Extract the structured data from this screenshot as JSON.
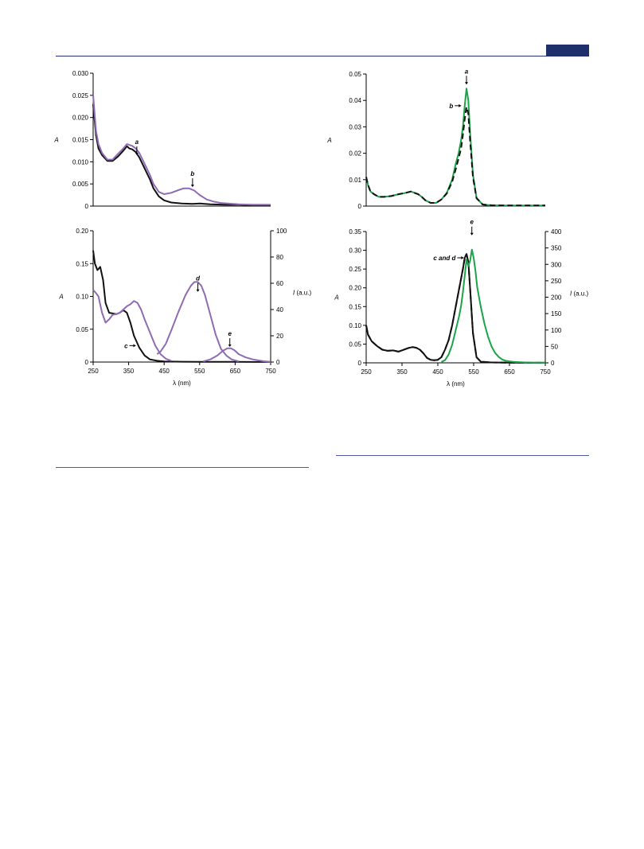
{
  "colors": {
    "purple": "#8e6bb3",
    "black": "#111111",
    "green": "#1aa44a",
    "header": "#1f2f6b"
  },
  "chart_data": [
    {
      "id": "A-top",
      "type": "line",
      "ylabel": "A",
      "xlim": [
        250,
        750
      ],
      "ylim": [
        0,
        0.03
      ],
      "yticks": [
        "0",
        "0.005",
        "0.010",
        "0.015",
        "0.020",
        "0.025",
        "0.030"
      ],
      "series": [
        {
          "color": "#111111",
          "style": "solid",
          "x": [
            250,
            258,
            265,
            275,
            290,
            305,
            320,
            335,
            345,
            352,
            360,
            370,
            380,
            395,
            410,
            420,
            435,
            450,
            470,
            500,
            530,
            550,
            580,
            620,
            660,
            700,
            750
          ],
          "y": [
            0.023,
            0.016,
            0.013,
            0.0115,
            0.0102,
            0.0102,
            0.0112,
            0.0125,
            0.0135,
            0.013,
            0.0128,
            0.0122,
            0.011,
            0.0085,
            0.006,
            0.004,
            0.0022,
            0.0013,
            0.0008,
            0.0006,
            0.0005,
            0.0006,
            0.0004,
            0.0003,
            0.0003,
            0.0002,
            0.0002
          ]
        },
        {
          "color": "#8e6bb3",
          "style": "solid",
          "x": [
            250,
            258,
            265,
            275,
            290,
            305,
            320,
            335,
            345,
            352,
            360,
            370,
            380,
            395,
            410,
            420,
            435,
            450,
            470,
            490,
            505,
            520,
            535,
            550,
            570,
            590,
            610,
            630,
            660,
            700,
            750
          ],
          "y": [
            0.025,
            0.017,
            0.014,
            0.012,
            0.0105,
            0.0105,
            0.0118,
            0.013,
            0.014,
            0.0138,
            0.0136,
            0.013,
            0.012,
            0.0095,
            0.007,
            0.005,
            0.0032,
            0.0027,
            0.003,
            0.0036,
            0.004,
            0.004,
            0.0035,
            0.0025,
            0.0015,
            0.001,
            0.0007,
            0.0006,
            0.0004,
            0.0003,
            0.0003
          ]
        }
      ],
      "annotations": [
        {
          "label": "a",
          "x": 373,
          "y": 0.0115
        },
        {
          "label": "b",
          "x": 530,
          "y": 0.0043
        }
      ]
    },
    {
      "id": "A-bottom",
      "type": "line",
      "xlabel": "λ (nm)",
      "ylabel": "A",
      "y2label": "I (a.u.)",
      "xlim": [
        250,
        750
      ],
      "ylim": [
        0,
        0.2
      ],
      "y2lim": [
        0,
        100
      ],
      "xticks": [
        "250",
        "350",
        "450",
        "550",
        "650",
        "750"
      ],
      "yticks": [
        "0",
        "0.05",
        "0.10",
        "0.15",
        "0.20"
      ],
      "y2ticks": [
        "0",
        "20",
        "40",
        "60",
        "80",
        "100"
      ],
      "series": [
        {
          "color": "#111111",
          "axis": "left",
          "x": [
            250,
            255,
            262,
            270,
            278,
            285,
            295,
            305,
            315,
            325,
            335,
            345,
            355,
            365,
            380,
            395,
            410,
            430,
            450,
            500,
            550,
            600,
            650,
            700,
            750
          ],
          "y": [
            0.17,
            0.15,
            0.14,
            0.145,
            0.125,
            0.09,
            0.075,
            0.074,
            0.073,
            0.075,
            0.079,
            0.075,
            0.06,
            0.04,
            0.022,
            0.01,
            0.004,
            0.002,
            0.001,
            0.0005,
            0.0003,
            0.0002,
            0.0002,
            0.0001,
            0.0001
          ]
        },
        {
          "color": "#8e6bb3",
          "axis": "left",
          "x": [
            250,
            258,
            265,
            275,
            285,
            295,
            305,
            315,
            325,
            335,
            345,
            355,
            365,
            375,
            385,
            395,
            410,
            425,
            440,
            455,
            470
          ],
          "y": [
            0.11,
            0.105,
            0.1,
            0.075,
            0.06,
            0.065,
            0.072,
            0.073,
            0.075,
            0.08,
            0.085,
            0.088,
            0.093,
            0.09,
            0.08,
            0.065,
            0.045,
            0.025,
            0.012,
            0.005,
            0.002
          ]
        },
        {
          "color": "#8e6bb3",
          "axis": "right",
          "x": [
            430,
            440,
            455,
            470,
            490,
            510,
            525,
            535,
            545,
            555,
            565,
            580,
            595,
            610,
            625,
            640,
            660
          ],
          "y": [
            6,
            8,
            14,
            24,
            38,
            51,
            58,
            61,
            61,
            58,
            51,
            36,
            21,
            10,
            5,
            2,
            0.5
          ]
        },
        {
          "color": "#8e6bb3",
          "axis": "right",
          "x": [
            560,
            580,
            600,
            615,
            628,
            638,
            648,
            660,
            680,
            700,
            730,
            750
          ],
          "y": [
            0.5,
            2,
            5,
            8.5,
            10.5,
            10.5,
            9,
            6,
            3.5,
            2,
            0.6,
            0.2
          ]
        }
      ],
      "annotations": [
        {
          "label": "c",
          "x": 370,
          "y": 0.025
        },
        {
          "label": "d",
          "x": 545,
          "y": 0.107
        },
        {
          "label": "e",
          "x": 635,
          "y": 0.023
        }
      ]
    },
    {
      "id": "B-top",
      "type": "line",
      "ylabel": "A",
      "xlim": [
        250,
        750
      ],
      "ylim": [
        0,
        0.05
      ],
      "yticks": [
        "0",
        "0.01",
        "0.02",
        "0.03",
        "0.04",
        "0.05"
      ],
      "series": [
        {
          "color": "#1aa44a",
          "style": "solid",
          "x": [
            250,
            255,
            262,
            272,
            285,
            300,
            320,
            340,
            360,
            375,
            385,
            395,
            405,
            415,
            430,
            445,
            460,
            475,
            490,
            500,
            508,
            515,
            520,
            525,
            530,
            535,
            540,
            548,
            558,
            575,
            600,
            650,
            700,
            750
          ],
          "y": [
            0.011,
            0.008,
            0.0055,
            0.0045,
            0.0035,
            0.0035,
            0.0038,
            0.0045,
            0.005,
            0.0055,
            0.005,
            0.0045,
            0.0035,
            0.0022,
            0.0012,
            0.0012,
            0.0025,
            0.005,
            0.01,
            0.016,
            0.02,
            0.025,
            0.03,
            0.038,
            0.0445,
            0.04,
            0.028,
            0.012,
            0.003,
            0.0006,
            0.0003,
            0.0002,
            0.0002,
            0.0002
          ]
        },
        {
          "color": "#111111",
          "style": "dashed",
          "x": [
            250,
            255,
            262,
            272,
            285,
            300,
            320,
            340,
            360,
            375,
            385,
            395,
            405,
            415,
            430,
            445,
            460,
            475,
            490,
            500,
            508,
            515,
            520,
            525,
            530,
            535,
            540,
            548,
            558,
            575,
            600,
            650,
            700,
            750
          ],
          "y": [
            0.011,
            0.008,
            0.0055,
            0.0045,
            0.0035,
            0.0035,
            0.0038,
            0.0045,
            0.005,
            0.0055,
            0.005,
            0.0045,
            0.0035,
            0.0022,
            0.0012,
            0.0012,
            0.0025,
            0.0048,
            0.0092,
            0.014,
            0.018,
            0.022,
            0.027,
            0.033,
            0.0375,
            0.035,
            0.025,
            0.011,
            0.003,
            0.0006,
            0.0003,
            0.0002,
            0.0002,
            0.0002
          ]
        }
      ],
      "annotations": [
        {
          "label": "a",
          "x": 530,
          "y": 0.046
        },
        {
          "label": "b",
          "x": 515,
          "y": 0.038
        }
      ]
    },
    {
      "id": "B-bottom",
      "type": "line",
      "xlabel": "λ (nm)",
      "ylabel": "A",
      "y2label": "I (a.u.)",
      "xlim": [
        250,
        750
      ],
      "ylim": [
        0,
        0.35
      ],
      "y2lim": [
        0,
        400
      ],
      "xticks": [
        "250",
        "350",
        "450",
        "550",
        "650",
        "750"
      ],
      "yticks": [
        "0",
        "0.05",
        "0.10",
        "0.15",
        "0.20",
        "0.25",
        "0.30",
        "0.35"
      ],
      "y2ticks": [
        "0",
        "50",
        "100",
        "150",
        "200",
        "250",
        "300",
        "350",
        "400"
      ],
      "series": [
        {
          "color": "#111111",
          "axis": "left",
          "style": "solid",
          "x": [
            250,
            255,
            265,
            280,
            295,
            310,
            325,
            340,
            355,
            370,
            380,
            390,
            400,
            410,
            420,
            430,
            440,
            450,
            460,
            470,
            480,
            490,
            500,
            510,
            520,
            525,
            530,
            535,
            540,
            548,
            558,
            570,
            600,
            650,
            700,
            750
          ],
          "y": [
            0.1,
            0.075,
            0.058,
            0.045,
            0.035,
            0.032,
            0.033,
            0.03,
            0.035,
            0.04,
            0.042,
            0.04,
            0.035,
            0.025,
            0.013,
            0.008,
            0.007,
            0.008,
            0.015,
            0.035,
            0.06,
            0.1,
            0.15,
            0.2,
            0.25,
            0.28,
            0.29,
            0.27,
            0.2,
            0.08,
            0.015,
            0.003,
            0.001,
            0.0005,
            0.0003,
            0.0003
          ]
        },
        {
          "color": "#111111",
          "axis": "left",
          "style": "dashed",
          "x": [
            250,
            255,
            265,
            280,
            295,
            310,
            325,
            340,
            355,
            370,
            380,
            390,
            400,
            410,
            420,
            430,
            440,
            450,
            460,
            470,
            480,
            490,
            500,
            510,
            520,
            525,
            530,
            535,
            540,
            548,
            558,
            570,
            600,
            650,
            700,
            750
          ],
          "y": [
            0.1,
            0.075,
            0.058,
            0.045,
            0.035,
            0.032,
            0.033,
            0.03,
            0.035,
            0.04,
            0.042,
            0.04,
            0.035,
            0.025,
            0.013,
            0.008,
            0.007,
            0.008,
            0.015,
            0.035,
            0.06,
            0.1,
            0.15,
            0.2,
            0.25,
            0.28,
            0.29,
            0.27,
            0.2,
            0.08,
            0.015,
            0.003,
            0.001,
            0.0005,
            0.0003,
            0.0003
          ]
        },
        {
          "color": "#1aa44a",
          "axis": "right",
          "x": [
            460,
            470,
            480,
            490,
            500,
            510,
            515,
            520,
            525,
            530,
            535,
            540,
            545,
            550,
            555,
            560,
            570,
            580,
            590,
            600,
            610,
            620,
            630,
            640,
            660,
            680,
            700,
            730,
            750
          ],
          "y": [
            3,
            8,
            25,
            55,
            100,
            145,
            175,
            215,
            265,
            315,
            295,
            310,
            345,
            320,
            280,
            230,
            170,
            120,
            80,
            50,
            30,
            18,
            10,
            6,
            3,
            2,
            1,
            0.5,
            0.3
          ]
        }
      ],
      "annotations": [
        {
          "label": "c and d",
          "x": 522,
          "y": 0.28
        },
        {
          "label": "e",
          "x": 545,
          "y": 0.34
        }
      ]
    }
  ]
}
